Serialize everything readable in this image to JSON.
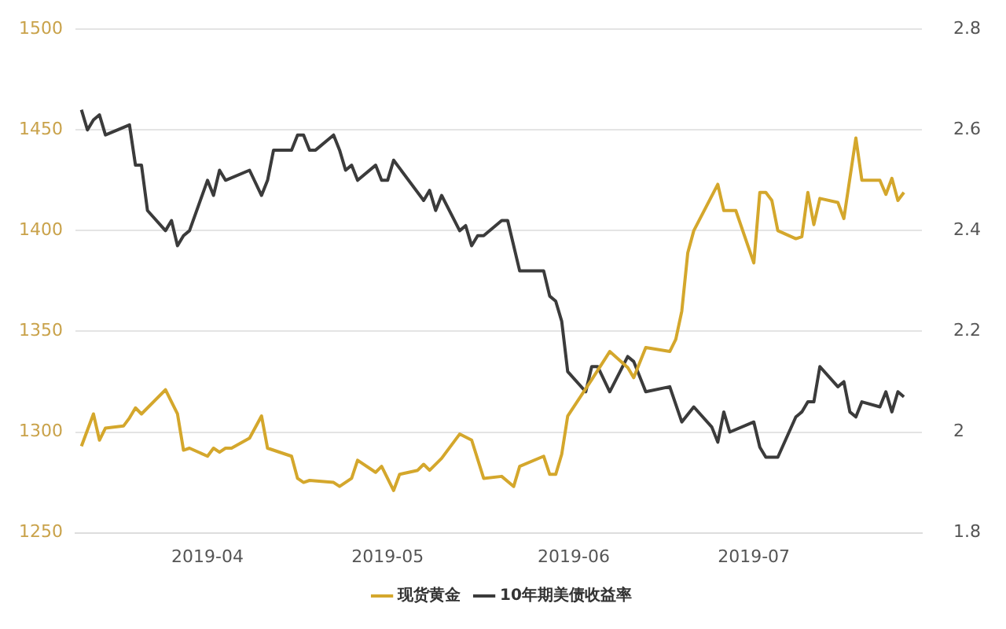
{
  "chart_data": {
    "type": "line",
    "xlim": [
      "2019-03-10",
      "2019-07-29"
    ],
    "xticks": [
      "2019-04",
      "2019-05",
      "2019-06",
      "2019-07"
    ],
    "ylim": [
      1250,
      1500
    ],
    "yticks": [
      1250,
      1300,
      1350,
      1400,
      1450,
      1500
    ],
    "y2lim": [
      1.8,
      2.8
    ],
    "y2ticks": [
      1.8,
      2,
      2.2,
      2.4,
      2.6,
      2.8
    ],
    "grid": "y",
    "legend": "bottom",
    "marker": "none",
    "series": [
      {
        "name": "现货黄金",
        "color": "#d4a72c",
        "x": [
          "2019-03-11",
          "2019-03-13",
          "2019-03-14",
          "2019-03-15",
          "2019-03-18",
          "2019-03-19",
          "2019-03-20",
          "2019-03-21",
          "2019-03-25",
          "2019-03-27",
          "2019-03-28",
          "2019-03-29",
          "2019-04-01",
          "2019-04-02",
          "2019-04-03",
          "2019-04-04",
          "2019-04-05",
          "2019-04-08",
          "2019-04-10",
          "2019-04-11",
          "2019-04-15",
          "2019-04-16",
          "2019-04-17",
          "2019-04-18",
          "2019-04-22",
          "2019-04-23",
          "2019-04-25",
          "2019-04-26",
          "2019-04-29",
          "2019-04-30",
          "2019-05-02",
          "2019-05-03",
          "2019-05-06",
          "2019-05-07",
          "2019-05-08",
          "2019-05-10",
          "2019-05-13",
          "2019-05-15",
          "2019-05-17",
          "2019-05-20",
          "2019-05-22",
          "2019-05-23",
          "2019-05-27",
          "2019-05-28",
          "2019-05-29",
          "2019-05-30",
          "2019-05-31",
          "2019-06-04",
          "2019-06-07",
          "2019-06-10",
          "2019-06-11",
          "2019-06-13",
          "2019-06-17",
          "2019-06-18",
          "2019-06-19",
          "2019-06-20",
          "2019-06-21",
          "2019-06-25",
          "2019-06-26",
          "2019-06-28",
          "2019-07-01",
          "2019-07-02",
          "2019-07-03",
          "2019-07-04",
          "2019-07-05",
          "2019-07-08",
          "2019-07-09",
          "2019-07-10",
          "2019-07-11",
          "2019-07-12",
          "2019-07-15",
          "2019-07-16",
          "2019-07-18",
          "2019-07-19",
          "2019-07-22",
          "2019-07-23",
          "2019-07-24",
          "2019-07-25",
          "2019-07-26"
        ],
        "values": [
          1293,
          1309,
          1296,
          1302,
          1303,
          1307,
          1312,
          1309,
          1321,
          1309,
          1291,
          1292,
          1288,
          1292,
          1290,
          1292,
          1292,
          1297,
          1308,
          1292,
          1288,
          1277,
          1275,
          1276,
          1275,
          1273,
          1277,
          1286,
          1280,
          1283,
          1271,
          1279,
          1281,
          1284,
          1281,
          1287,
          1299,
          1296,
          1277,
          1278,
          1273,
          1283,
          1288,
          1279,
          1279,
          1289,
          1308,
          1326,
          1340,
          1332,
          1327,
          1342,
          1340,
          1346,
          1360,
          1389,
          1400,
          1423,
          1410,
          1410,
          1384,
          1419,
          1419,
          1415,
          1400,
          1396,
          1397,
          1419,
          1403,
          1416,
          1414,
          1406,
          1446,
          1425,
          1425,
          1418,
          1426,
          1415,
          1419
        ]
      },
      {
        "name": "10年期美债收益率",
        "color": "#3b3b3b",
        "axis": "y2",
        "x": [
          "2019-03-11",
          "2019-03-12",
          "2019-03-13",
          "2019-03-14",
          "2019-03-15",
          "2019-03-19",
          "2019-03-20",
          "2019-03-21",
          "2019-03-22",
          "2019-03-25",
          "2019-03-26",
          "2019-03-27",
          "2019-03-28",
          "2019-03-29",
          "2019-04-01",
          "2019-04-02",
          "2019-04-03",
          "2019-04-04",
          "2019-04-08",
          "2019-04-10",
          "2019-04-11",
          "2019-04-12",
          "2019-04-15",
          "2019-04-16",
          "2019-04-17",
          "2019-04-18",
          "2019-04-19",
          "2019-04-22",
          "2019-04-23",
          "2019-04-24",
          "2019-04-25",
          "2019-04-26",
          "2019-04-29",
          "2019-04-30",
          "2019-05-01",
          "2019-05-02",
          "2019-05-07",
          "2019-05-08",
          "2019-05-09",
          "2019-05-10",
          "2019-05-13",
          "2019-05-14",
          "2019-05-15",
          "2019-05-16",
          "2019-05-17",
          "2019-05-20",
          "2019-05-21",
          "2019-05-23",
          "2019-05-27",
          "2019-05-28",
          "2019-05-29",
          "2019-05-30",
          "2019-05-31",
          "2019-06-03",
          "2019-06-04",
          "2019-06-05",
          "2019-06-07",
          "2019-06-10",
          "2019-06-11",
          "2019-06-13",
          "2019-06-17",
          "2019-06-19",
          "2019-06-21",
          "2019-06-24",
          "2019-06-25",
          "2019-06-26",
          "2019-06-27",
          "2019-07-01",
          "2019-07-02",
          "2019-07-03",
          "2019-07-05",
          "2019-07-08",
          "2019-07-09",
          "2019-07-10",
          "2019-07-11",
          "2019-07-12",
          "2019-07-15",
          "2019-07-16",
          "2019-07-17",
          "2019-07-18",
          "2019-07-19",
          "2019-07-22",
          "2019-07-23",
          "2019-07-24",
          "2019-07-25",
          "2019-07-26"
        ],
        "values": [
          2.64,
          2.6,
          2.62,
          2.63,
          2.59,
          2.61,
          2.53,
          2.53,
          2.44,
          2.4,
          2.42,
          2.37,
          2.39,
          2.4,
          2.5,
          2.47,
          2.52,
          2.5,
          2.52,
          2.47,
          2.5,
          2.56,
          2.56,
          2.59,
          2.59,
          2.56,
          2.56,
          2.59,
          2.56,
          2.52,
          2.53,
          2.5,
          2.53,
          2.5,
          2.5,
          2.54,
          2.46,
          2.48,
          2.44,
          2.47,
          2.4,
          2.41,
          2.37,
          2.39,
          2.39,
          2.42,
          2.42,
          2.32,
          2.32,
          2.27,
          2.26,
          2.22,
          2.12,
          2.08,
          2.13,
          2.13,
          2.08,
          2.15,
          2.14,
          2.08,
          2.09,
          2.02,
          2.05,
          2.01,
          1.98,
          2.04,
          2,
          2.02,
          1.97,
          1.95,
          1.95,
          2.03,
          2.04,
          2.06,
          2.06,
          2.13,
          2.09,
          2.1,
          2.04,
          2.03,
          2.06,
          2.05,
          2.08,
          2.04,
          2.08,
          2.07
        ]
      }
    ]
  }
}
